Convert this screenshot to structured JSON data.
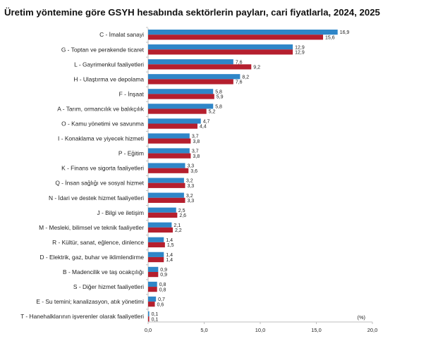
{
  "chart_data": {
    "type": "bar",
    "orientation": "horizontal",
    "title": "Üretim yöntemine göre GSYH hesabında sektörlerin payları, cari fiyatlarla, 2024, 2025",
    "unit_label": "(%)",
    "xlim": [
      0,
      20
    ],
    "xticks": [
      "0,0",
      "5,0",
      "10,0",
      "15,0",
      "20,0"
    ],
    "grid": false,
    "legend": "bottom",
    "colors": [
      "#2f86c8",
      "#b51f2e"
    ],
    "categories": [
      "C - İmalat sanayi",
      "G - Toptan ve perakende ticaret",
      "L - Gayrimenkul faaliyetleri",
      "H - Ulaştırma ve depolama",
      "F - İnşaat",
      "A - Tarım, ormancılık ve balıkçılık",
      "O - Kamu yönetimi ve savunma",
      "I - Konaklama ve yiyecek hizmeti",
      "P - Eğitim",
      "K - Finans ve sigorta faaliyetleri",
      "Q - İnsan sağlığı ve sosyal hizmet",
      "N - İdari ve destek hizmet faaliyetleri",
      "J - Bilgi ve iletişim",
      "M - Mesleki, bilimsel ve teknik faaliyetler",
      "R - Kültür, sanat, eğlence, dinlence",
      "D - Elektrik, gaz, buhar ve iklimlendirme",
      "B - Madencilik ve taş ocakçılığı",
      "S - Diğer hizmet faaliyetleri",
      "E - Su temini; kanalizasyon, atık yönetimi",
      "T - Hanehalklarının işverenler olarak faaliyetleri"
    ],
    "series": [
      {
        "values": [
          16.9,
          12.9,
          7.6,
          8.2,
          5.8,
          5.8,
          4.7,
          3.7,
          3.7,
          3.3,
          3.2,
          3.2,
          2.5,
          2.1,
          1.4,
          1.4,
          0.9,
          0.8,
          0.7,
          0.1
        ],
        "labels": [
          "16,9",
          "12,9",
          "7,6",
          "8,2",
          "5,8",
          "5,8",
          "4,7",
          "3,7",
          "3,7",
          "3,3",
          "3,2",
          "3,2",
          "2,5",
          "2,1",
          "1,4",
          "1,4",
          "0,9",
          "0,8",
          "0,7",
          "0,1"
        ]
      },
      {
        "values": [
          15.6,
          12.9,
          9.2,
          7.6,
          5.9,
          5.2,
          4.4,
          3.8,
          3.8,
          3.6,
          3.3,
          3.3,
          2.6,
          2.2,
          1.5,
          1.4,
          0.9,
          0.8,
          0.6,
          0.1
        ],
        "labels": [
          "15,6",
          "12,9",
          "9,2",
          "7,6",
          "5,9",
          "5,2",
          "4,4",
          "3,8",
          "3,8",
          "3,6",
          "3,3",
          "3,3",
          "2,6",
          "2,2",
          "1,5",
          "1,4",
          "0,9",
          "0,8",
          "0,6",
          "0,1"
        ]
      }
    ]
  }
}
